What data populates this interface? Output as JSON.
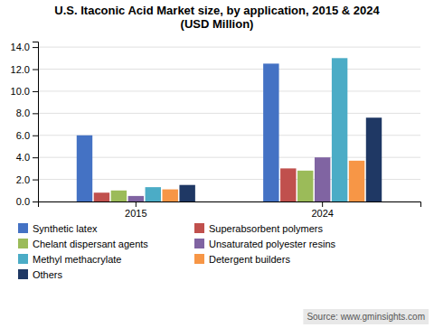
{
  "chart_data": {
    "type": "bar",
    "title": "U.S. Itaconic Acid Market size, by application, 2015 & 2024\n(USD Million)",
    "categories": [
      "2015",
      "2024"
    ],
    "series": [
      {
        "name": "Synthetic latex",
        "color": "#4472C4",
        "values": [
          6.0,
          12.5
        ]
      },
      {
        "name": "Superabsorbent polymers",
        "color": "#C0504D",
        "values": [
          0.8,
          3.0
        ]
      },
      {
        "name": "Chelant dispersant agents",
        "color": "#9BBB59",
        "values": [
          1.0,
          2.8
        ]
      },
      {
        "name": "Unsaturated polyester resins",
        "color": "#8064A2",
        "values": [
          0.5,
          4.0
        ]
      },
      {
        "name": "Methyl methacrylate",
        "color": "#4BACC6",
        "values": [
          1.3,
          13.0
        ]
      },
      {
        "name": "Detergent builders",
        "color": "#F79646",
        "values": [
          1.1,
          3.7
        ]
      },
      {
        "name": "Others",
        "color": "#1F3864",
        "values": [
          1.5,
          7.6
        ]
      }
    ],
    "ylim": [
      0,
      14.5
    ],
    "yticks": [
      {
        "value": 0.0,
        "label": "0.0"
      },
      {
        "value": 2.0,
        "label": "2.0"
      },
      {
        "value": 4.0,
        "label": "4.0"
      },
      {
        "value": 6.0,
        "label": "6.0"
      },
      {
        "value": 8.0,
        "label": "8.0"
      },
      {
        "value": 10.0,
        "label": "10.0"
      },
      {
        "value": 12.0,
        "label": "12.0"
      },
      {
        "value": 14.0,
        "label": "14.0"
      }
    ],
    "grid": true,
    "legend": "lower left",
    "annotations": [
      "Source: www.gminsights.com"
    ]
  }
}
